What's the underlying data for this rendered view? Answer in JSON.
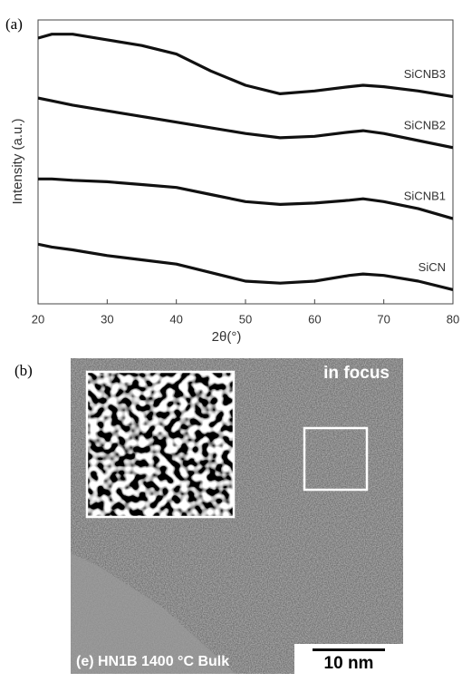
{
  "panel_labels": [
    "(a)",
    "(b)"
  ],
  "chart_data": {
    "type": "line",
    "xlabel": "2θ(°)",
    "ylabel": "Intensity (a.u.)",
    "x": [
      20,
      22,
      25,
      30,
      35,
      40,
      45,
      50,
      55,
      60,
      65,
      67,
      70,
      75,
      80
    ],
    "series": [
      {
        "name": "SiCNB3",
        "color": "#111111",
        "values": [
          93.6,
          95,
          95,
          93,
          91,
          88,
          82,
          77,
          74,
          75,
          76.5,
          77,
          76.5,
          75,
          73
        ]
      },
      {
        "name": "SiCNB2",
        "color": "#111111",
        "values": [
          72.5,
          71.5,
          70,
          68,
          66,
          64,
          62,
          60,
          58.5,
          59,
          60.5,
          61,
          60,
          57.5,
          55
        ]
      },
      {
        "name": "SiCNB1",
        "color": "#111111",
        "values": [
          44,
          44,
          43.5,
          43,
          42,
          41,
          38.5,
          36,
          35,
          35.5,
          36.5,
          37,
          36,
          33.5,
          30
        ]
      },
      {
        "name": "SiCN",
        "color": "#111111",
        "values": [
          21,
          20,
          19,
          17,
          15.5,
          14,
          11,
          8,
          7.3,
          8,
          10,
          10.5,
          10,
          8,
          5
        ]
      }
    ],
    "xlim": [
      20,
      80
    ],
    "xticks": [
      20,
      30,
      40,
      50,
      60,
      70,
      80
    ],
    "ylim": [
      0,
      100
    ]
  },
  "micrograph": {
    "annotation": "in focus",
    "caption": "(e) HN1B 1400 °C Bulk",
    "scale_bar": "10 nm"
  }
}
